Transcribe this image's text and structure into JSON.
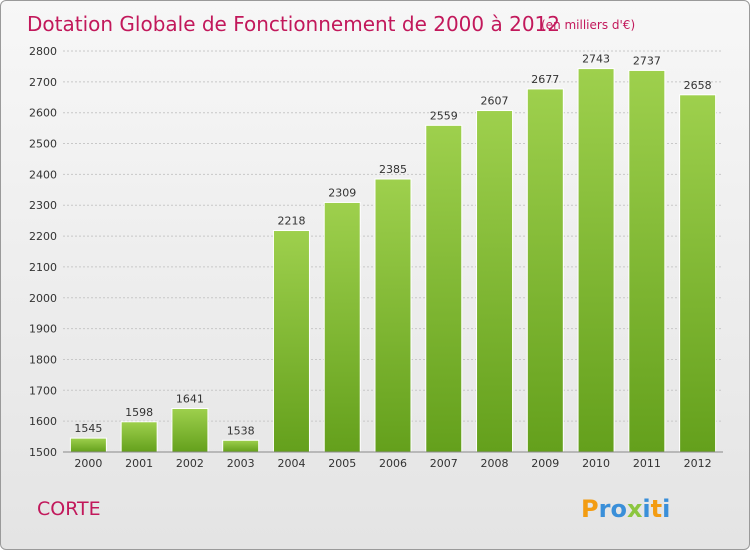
{
  "chart_data": {
    "type": "bar",
    "title": "Dotation Globale de Fonctionnement de 2000 à 2012",
    "subtitle": "(en milliers d'€)",
    "categories": [
      "2000",
      "2001",
      "2002",
      "2003",
      "2004",
      "2005",
      "2006",
      "2007",
      "2008",
      "2009",
      "2010",
      "2011",
      "2012"
    ],
    "values": [
      1545,
      1598,
      1641,
      1538,
      2218,
      2309,
      2385,
      2559,
      2607,
      2677,
      2743,
      2737,
      2658
    ],
    "yticks": [
      1500,
      1600,
      1700,
      1800,
      1900,
      2000,
      2100,
      2200,
      2300,
      2400,
      2500,
      2600,
      2700,
      2800
    ],
    "ylim": [
      1500,
      2800
    ],
    "xlabel": "",
    "ylabel": "",
    "grid": true,
    "bar_color": "#8cc63f"
  },
  "commune": "CORTE",
  "logo": {
    "letters": [
      "P",
      "r",
      "o",
      "x",
      "i",
      "t",
      "i"
    ],
    "colors": [
      "#f39c12",
      "#3a8fd9",
      "#3a8fd9",
      "#8cc63f",
      "#3a8fd9",
      "#f39c12",
      "#3a8fd9"
    ]
  }
}
